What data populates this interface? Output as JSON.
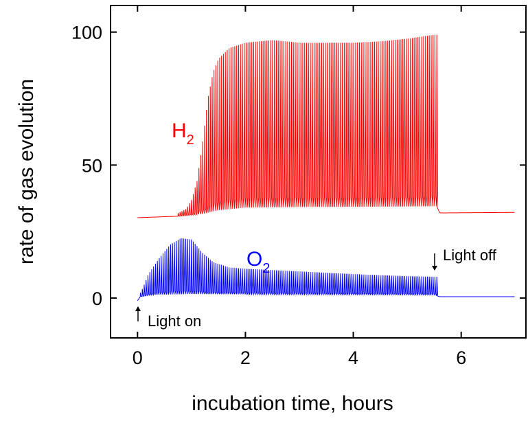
{
  "chart_data": {
    "type": "line",
    "xlabel": "incubation time, hours",
    "ylabel": "rate of gas evolution",
    "xlim": [
      -0.5,
      7.2
    ],
    "ylim": [
      -15,
      110
    ],
    "xticks": [
      0,
      2,
      4,
      6
    ],
    "yticks": [
      0,
      50,
      100
    ],
    "grid": false,
    "series": [
      {
        "name": "H2",
        "label_main": "H",
        "label_sub": "2",
        "color": "#ff0000",
        "baseline": [
          [
            0,
            30.2
          ],
          [
            0.8,
            30.8
          ],
          [
            1.2,
            31.6
          ],
          [
            1.5,
            33.0
          ],
          [
            2.0,
            34.0
          ],
          [
            3.0,
            34.2
          ],
          [
            4.0,
            34.3
          ],
          [
            5.0,
            34.4
          ],
          [
            5.55,
            34.5
          ],
          [
            5.6,
            32.0
          ],
          [
            7.0,
            32.2
          ]
        ],
        "peaks": [
          [
            0.7,
            31.5
          ],
          [
            0.9,
            33.5
          ],
          [
            1.0,
            37
          ],
          [
            1.1,
            44
          ],
          [
            1.2,
            58
          ],
          [
            1.3,
            75
          ],
          [
            1.4,
            85
          ],
          [
            1.5,
            90
          ],
          [
            1.7,
            94
          ],
          [
            2.0,
            96
          ],
          [
            2.5,
            97
          ],
          [
            3.0,
            96
          ],
          [
            3.5,
            96
          ],
          [
            4.0,
            96
          ],
          [
            4.5,
            96.5
          ],
          [
            5.0,
            97.5
          ],
          [
            5.5,
            99
          ]
        ],
        "pulse_start": 0.75,
        "pulse_end": 5.55,
        "pulse_spacing": 0.035
      },
      {
        "name": "O2",
        "label_main": "O",
        "label_sub": "2",
        "color": "#0000ff",
        "baseline": [
          [
            0,
            -1.0
          ],
          [
            0.05,
            0.5
          ],
          [
            0.3,
            1.2
          ],
          [
            1.0,
            1.5
          ],
          [
            3.0,
            1.3
          ],
          [
            5.5,
            1.2
          ],
          [
            5.6,
            0.5
          ],
          [
            7.0,
            0.5
          ]
        ],
        "peaks": [
          [
            0,
            0
          ],
          [
            0.1,
            4
          ],
          [
            0.2,
            9
          ],
          [
            0.4,
            15
          ],
          [
            0.6,
            20
          ],
          [
            0.8,
            22.5
          ],
          [
            1.0,
            22
          ],
          [
            1.2,
            17
          ],
          [
            1.4,
            13.5
          ],
          [
            1.7,
            11.5
          ],
          [
            2.0,
            11
          ],
          [
            3.0,
            10
          ],
          [
            4.0,
            9
          ],
          [
            5.0,
            8.2
          ],
          [
            5.55,
            8
          ]
        ],
        "pulse_start": 0.05,
        "pulse_end": 5.55,
        "pulse_spacing": 0.035
      }
    ],
    "annotations": [
      {
        "text": "Light on",
        "x": 0.0,
        "arrow": "up"
      },
      {
        "text": "Light off",
        "x": 5.55,
        "arrow": "down"
      }
    ]
  }
}
